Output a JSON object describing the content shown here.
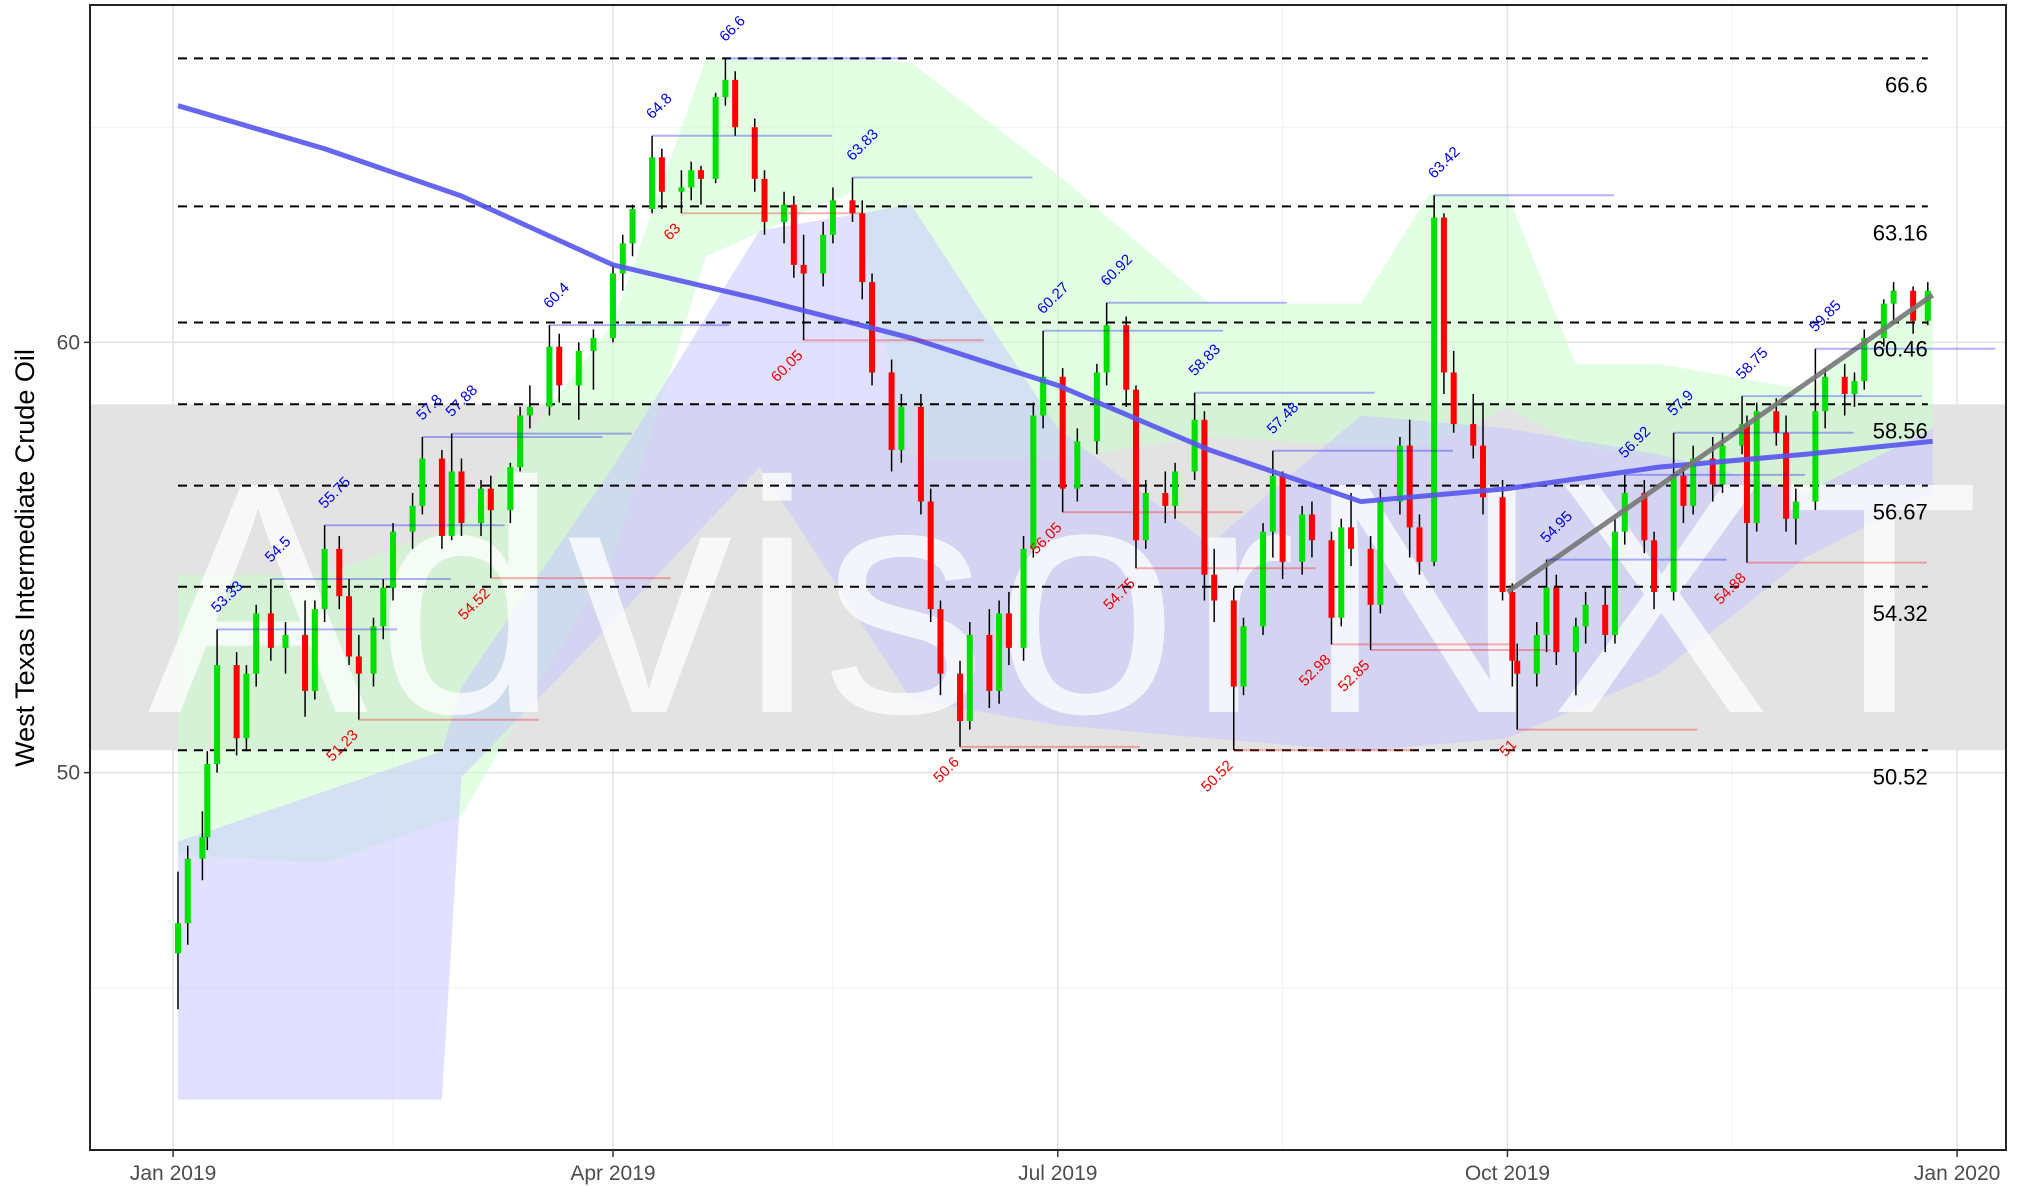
{
  "chart_data": {
    "type": "candlestick",
    "y_label": "West Texas Intermediate Crude Oil",
    "watermark": "AdvisorNXT",
    "xlim": [
      "2018-12-15",
      "2020-01-11"
    ],
    "xticks": [
      {
        "value": "2019-01-01",
        "label": "Jan 2019"
      },
      {
        "value": "2019-04-01",
        "label": "Apr 2019"
      },
      {
        "value": "2019-07-01",
        "label": "Jul 2019"
      },
      {
        "value": "2019-10-01",
        "label": "Oct 2019"
      },
      {
        "value": "2020-01-01",
        "label": "Jan 2020"
      }
    ],
    "xminor": [
      "2019-02-15",
      "2019-05-16",
      "2019-08-16",
      "2019-11-16"
    ],
    "ylim": [
      41.23,
      67.84
    ],
    "yticks": [
      50,
      60
    ],
    "yminor": [
      45,
      55,
      65
    ],
    "grid": true,
    "up_color": "#00e000",
    "down_color": "#ff0000",
    "candles": [
      [
        "2019-01-02",
        45.8,
        47.7,
        44.5,
        46.5
      ],
      [
        "2019-01-04",
        46.5,
        48.3,
        46.0,
        48.0
      ],
      [
        "2019-01-07",
        48.0,
        49.1,
        47.5,
        48.5
      ],
      [
        "2019-01-08",
        48.5,
        50.5,
        48.2,
        50.2
      ],
      [
        "2019-01-10",
        50.2,
        53.33,
        50.0,
        52.5
      ],
      [
        "2019-01-14",
        52.5,
        52.8,
        50.4,
        50.8
      ],
      [
        "2019-01-16",
        50.8,
        52.5,
        50.5,
        52.3
      ],
      [
        "2019-01-18",
        52.3,
        53.9,
        52.0,
        53.7
      ],
      [
        "2019-01-21",
        53.7,
        54.5,
        52.6,
        52.9
      ],
      [
        "2019-01-24",
        52.9,
        53.5,
        52.3,
        53.2
      ],
      [
        "2019-01-28",
        53.2,
        54.0,
        51.3,
        51.9
      ],
      [
        "2019-01-30",
        51.9,
        54.0,
        51.7,
        53.8
      ],
      [
        "2019-02-01",
        53.8,
        55.75,
        53.5,
        55.2
      ],
      [
        "2019-02-04",
        55.2,
        55.5,
        53.8,
        54.1
      ],
      [
        "2019-02-06",
        54.1,
        54.5,
        52.5,
        52.7
      ],
      [
        "2019-02-08",
        52.7,
        53.2,
        51.23,
        52.3
      ],
      [
        "2019-02-11",
        52.3,
        53.6,
        52.0,
        53.4
      ],
      [
        "2019-02-13",
        53.4,
        54.5,
        53.1,
        54.3
      ],
      [
        "2019-02-15",
        54.3,
        55.8,
        54.0,
        55.6
      ],
      [
        "2019-02-19",
        55.6,
        56.5,
        55.2,
        56.2
      ],
      [
        "2019-02-21",
        56.2,
        57.8,
        56.0,
        57.3
      ],
      [
        "2019-02-25",
        57.3,
        57.5,
        55.2,
        55.5
      ],
      [
        "2019-02-27",
        55.5,
        57.88,
        55.4,
        57.0
      ],
      [
        "2019-03-01",
        57.0,
        57.3,
        55.5,
        55.8
      ],
      [
        "2019-03-05",
        55.8,
        56.8,
        55.5,
        56.6
      ],
      [
        "2019-03-07",
        56.6,
        56.9,
        54.52,
        56.1
      ],
      [
        "2019-03-11",
        56.1,
        57.2,
        55.8,
        57.1
      ],
      [
        "2019-03-13",
        57.1,
        58.5,
        57.0,
        58.3
      ],
      [
        "2019-03-15",
        58.3,
        59.0,
        58.0,
        58.5
      ],
      [
        "2019-03-19",
        58.5,
        60.4,
        58.3,
        59.9
      ],
      [
        "2019-03-21",
        59.9,
        60.2,
        58.6,
        59.0
      ],
      [
        "2019-03-25",
        59.0,
        60.0,
        58.2,
        59.8
      ],
      [
        "2019-03-28",
        59.8,
        60.3,
        58.9,
        60.1
      ],
      [
        "2019-04-01",
        60.1,
        61.8,
        60.0,
        61.6
      ],
      [
        "2019-04-03",
        61.6,
        62.5,
        61.2,
        62.3
      ],
      [
        "2019-04-05",
        62.3,
        63.2,
        62.0,
        63.1
      ],
      [
        "2019-04-09",
        63.1,
        64.8,
        63.0,
        64.3
      ],
      [
        "2019-04-11",
        64.3,
        64.5,
        63.1,
        63.5
      ],
      [
        "2019-04-15",
        63.5,
        64.0,
        63,
        63.6
      ],
      [
        "2019-04-17",
        63.6,
        64.2,
        63.3,
        64.0
      ],
      [
        "2019-04-19",
        64.0,
        64.1,
        63.2,
        63.8
      ],
      [
        "2019-04-22",
        63.8,
        65.8,
        63.7,
        65.7
      ],
      [
        "2019-04-24",
        65.7,
        66.6,
        65.5,
        66.1
      ],
      [
        "2019-04-26",
        66.1,
        66.3,
        64.8,
        65.0
      ],
      [
        "2019-04-30",
        65.0,
        65.2,
        63.5,
        63.8
      ],
      [
        "2019-05-02",
        63.8,
        64.0,
        62.5,
        62.8
      ],
      [
        "2019-05-06",
        62.8,
        63.5,
        62.3,
        63.2
      ],
      [
        "2019-05-08",
        63.2,
        63.4,
        61.5,
        61.8
      ],
      [
        "2019-05-10",
        61.8,
        62.5,
        60.05,
        61.6
      ],
      [
        "2019-05-14",
        61.6,
        62.8,
        61.3,
        62.5
      ],
      [
        "2019-05-16",
        62.5,
        63.6,
        62.3,
        63.3
      ],
      [
        "2019-05-20",
        63.3,
        63.83,
        62.8,
        63.0
      ],
      [
        "2019-05-22",
        63.0,
        63.3,
        61.0,
        61.4
      ],
      [
        "2019-05-24",
        61.4,
        61.6,
        59.0,
        59.3
      ],
      [
        "2019-05-28",
        59.3,
        59.6,
        57.0,
        57.5
      ],
      [
        "2019-05-30",
        57.5,
        58.8,
        57.2,
        58.5
      ],
      [
        "2019-06-03",
        58.5,
        58.8,
        56.0,
        56.3
      ],
      [
        "2019-06-05",
        56.3,
        56.6,
        53.5,
        53.8
      ],
      [
        "2019-06-07",
        53.8,
        54.0,
        51.8,
        52.3
      ],
      [
        "2019-06-11",
        52.3,
        52.6,
        50.6,
        51.2
      ],
      [
        "2019-06-13",
        51.2,
        53.5,
        51.0,
        53.2
      ],
      [
        "2019-06-17",
        53.2,
        53.8,
        51.5,
        51.9
      ],
      [
        "2019-06-19",
        51.9,
        54.0,
        51.6,
        53.7
      ],
      [
        "2019-06-21",
        53.7,
        54.2,
        52.5,
        52.9
      ],
      [
        "2019-06-24",
        52.9,
        55.5,
        52.6,
        55.2
      ],
      [
        "2019-06-26",
        55.2,
        58.6,
        55.0,
        58.3
      ],
      [
        "2019-06-28",
        58.3,
        60.27,
        58.0,
        59.2
      ],
      [
        "2019-07-02",
        59.2,
        59.4,
        56.05,
        56.6
      ],
      [
        "2019-07-05",
        56.6,
        58.0,
        56.3,
        57.7
      ],
      [
        "2019-07-09",
        57.7,
        59.5,
        57.4,
        59.3
      ],
      [
        "2019-07-11",
        59.3,
        60.92,
        59.0,
        60.4
      ],
      [
        "2019-07-15",
        60.4,
        60.6,
        58.5,
        58.9
      ],
      [
        "2019-07-17",
        58.9,
        59.0,
        54.75,
        55.4
      ],
      [
        "2019-07-19",
        55.4,
        56.8,
        55.2,
        56.5
      ],
      [
        "2019-07-23",
        56.5,
        57.0,
        55.8,
        56.2
      ],
      [
        "2019-07-25",
        56.2,
        57.2,
        55.9,
        57.0
      ],
      [
        "2019-07-29",
        57.0,
        58.83,
        56.8,
        58.2
      ],
      [
        "2019-07-31",
        58.2,
        58.4,
        54.0,
        54.6
      ],
      [
        "2019-08-02",
        54.6,
        55.2,
        53.5,
        54.0
      ],
      [
        "2019-08-06",
        54.0,
        54.3,
        50.52,
        52.0
      ],
      [
        "2019-08-08",
        52.0,
        53.6,
        51.8,
        53.4
      ],
      [
        "2019-08-12",
        53.4,
        55.8,
        53.2,
        55.6
      ],
      [
        "2019-08-14",
        55.6,
        57.48,
        55.0,
        56.9
      ],
      [
        "2019-08-16",
        56.9,
        57.0,
        54.5,
        54.9
      ],
      [
        "2019-08-20",
        54.9,
        56.2,
        54.6,
        56.0
      ],
      [
        "2019-08-22",
        56.0,
        56.3,
        55.0,
        55.4
      ],
      [
        "2019-08-26",
        55.4,
        55.6,
        52.98,
        53.6
      ],
      [
        "2019-08-28",
        53.6,
        55.9,
        53.4,
        55.7
      ],
      [
        "2019-08-30",
        55.7,
        56.5,
        54.8,
        55.2
      ],
      [
        "2019-09-03",
        55.2,
        55.5,
        52.85,
        53.9
      ],
      [
        "2019-09-05",
        53.9,
        56.6,
        53.7,
        56.3
      ],
      [
        "2019-09-09",
        56.3,
        57.8,
        56.0,
        57.6
      ],
      [
        "2019-09-11",
        57.6,
        58.2,
        55.0,
        55.7
      ],
      [
        "2019-09-13",
        55.7,
        56.0,
        54.6,
        54.9
      ],
      [
        "2019-09-16",
        54.9,
        63.42,
        54.8,
        62.9
      ],
      [
        "2019-09-18",
        62.9,
        63.0,
        58.8,
        59.3
      ],
      [
        "2019-09-20",
        59.3,
        59.8,
        57.9,
        58.1
      ],
      [
        "2019-09-24",
        58.1,
        58.8,
        57.3,
        57.6
      ],
      [
        "2019-09-26",
        57.6,
        58.6,
        56.0,
        56.4
      ],
      [
        "2019-09-30",
        56.4,
        56.8,
        54.0,
        54.2
      ],
      [
        "2019-10-02",
        54.2,
        54.4,
        52.0,
        52.6
      ],
      [
        "2019-10-03",
        52.6,
        53.0,
        51,
        52.3
      ],
      [
        "2019-10-07",
        52.3,
        53.5,
        52.0,
        53.2
      ],
      [
        "2019-10-09",
        53.2,
        54.95,
        52.8,
        54.3
      ],
      [
        "2019-10-11",
        54.3,
        54.6,
        52.5,
        52.8
      ],
      [
        "2019-10-15",
        52.8,
        53.6,
        51.8,
        53.4
      ],
      [
        "2019-10-17",
        53.4,
        54.2,
        53.0,
        53.9
      ],
      [
        "2019-10-21",
        53.9,
        54.3,
        52.8,
        53.2
      ],
      [
        "2019-10-23",
        53.2,
        55.9,
        53.0,
        55.6
      ],
      [
        "2019-10-25",
        55.6,
        56.92,
        55.3,
        56.5
      ],
      [
        "2019-10-29",
        56.5,
        56.8,
        55.1,
        55.4
      ],
      [
        "2019-10-31",
        55.4,
        55.6,
        53.8,
        54.2
      ],
      [
        "2019-11-04",
        54.2,
        57.9,
        54.0,
        56.9
      ],
      [
        "2019-11-06",
        56.9,
        57.1,
        55.8,
        56.2
      ],
      [
        "2019-11-08",
        56.2,
        57.6,
        56.0,
        57.3
      ],
      [
        "2019-11-12",
        57.3,
        57.8,
        56.3,
        56.7
      ],
      [
        "2019-11-14",
        56.7,
        57.9,
        56.5,
        57.6
      ],
      [
        "2019-11-18",
        57.6,
        58.75,
        57.4,
        58.1
      ],
      [
        "2019-11-19",
        58.1,
        58.3,
        54.88,
        55.8
      ],
      [
        "2019-11-21",
        55.8,
        58.6,
        55.6,
        58.4
      ],
      [
        "2019-11-25",
        58.4,
        58.7,
        57.6,
        57.9
      ],
      [
        "2019-11-27",
        57.9,
        58.3,
        55.6,
        55.9
      ],
      [
        "2019-11-29",
        55.9,
        56.6,
        55.3,
        56.3
      ],
      [
        "2019-12-03",
        56.3,
        59.85,
        56.1,
        58.4
      ],
      [
        "2019-12-05",
        58.4,
        59.4,
        58.0,
        59.2
      ],
      [
        "2019-12-09",
        59.2,
        59.5,
        58.3,
        58.8
      ],
      [
        "2019-12-11",
        58.8,
        59.3,
        58.5,
        59.1
      ],
      [
        "2019-12-13",
        59.1,
        60.3,
        58.9,
        60.1
      ],
      [
        "2019-12-17",
        60.1,
        61.0,
        59.9,
        60.9
      ],
      [
        "2019-12-19",
        60.9,
        61.4,
        60.5,
        61.2
      ],
      [
        "2019-12-23",
        61.2,
        61.3,
        60.2,
        60.5
      ],
      [
        "2019-12-26",
        60.5,
        61.4,
        60.4,
        61.2
      ]
    ],
    "band": {
      "color": "#e3e3e3",
      "values": [
        50.52,
        58.56
      ]
    },
    "levels": [
      66.6,
      63.16,
      60.46,
      58.56,
      56.67,
      54.32,
      50.52
    ],
    "clouds": [
      {
        "color": "#ccffcc",
        "x": [
          "2019-01-02",
          "2019-02-01",
          "2019-03-01",
          "2019-04-01",
          "2019-04-20",
          "2019-05-20",
          "2019-06-01",
          "2019-07-01",
          "2019-08-01",
          "2019-09-01",
          "2019-09-15",
          "2019-10-01",
          "2019-10-15",
          "2019-11-01",
          "2019-12-01",
          "2019-12-27"
        ],
        "upper": [
          54.6,
          54.6,
          55.8,
          60.45,
          66.6,
          66.6,
          66.5,
          63.9,
          60.9,
          60.9,
          63.45,
          63.45,
          59.5,
          59.5,
          58.9,
          61.2
        ],
        "lower": [
          48.1,
          47.9,
          49.0,
          55.0,
          62.0,
          63.5,
          57.3,
          57.3,
          57.8,
          57.6,
          57.6,
          58.5,
          57.6,
          57.3,
          56.5,
          58.0
        ]
      },
      {
        "color": "#c8c8ff",
        "x": [
          "2019-01-02",
          "2019-02-25",
          "2019-03-01",
          "2019-04-01",
          "2019-05-01",
          "2019-06-01",
          "2019-07-01",
          "2019-08-01",
          "2019-09-01",
          "2019-10-01",
          "2019-11-01",
          "2019-12-01",
          "2019-12-27"
        ],
        "upper": [
          48.4,
          50.5,
          52.0,
          57.1,
          62.6,
          63.2,
          58.0,
          55.3,
          58.3,
          58.0,
          57.4,
          56.5,
          58.0
        ],
        "lower": [
          42.4,
          42.4,
          49.9,
          53.5,
          57.1,
          51.7,
          51.1,
          50.8,
          50.5,
          50.8,
          52.3,
          55.0,
          56.5
        ]
      }
    ],
    "ma": {
      "color": "#5555ee",
      "x": [
        "2019-01-02",
        "2019-02-01",
        "2019-03-01",
        "2019-04-01",
        "2019-05-01",
        "2019-06-01",
        "2019-07-01",
        "2019-08-01",
        "2019-09-01",
        "2019-10-01",
        "2019-11-01",
        "2019-12-01",
        "2019-12-27"
      ],
      "values": [
        65.5,
        64.5,
        63.4,
        61.8,
        61.0,
        60.1,
        59.0,
        57.5,
        56.3,
        56.6,
        57.1,
        57.4,
        57.7
      ]
    },
    "trend": {
      "color": "#777777",
      "x": [
        "2019-10-01",
        "2019-12-27"
      ],
      "values": [
        54.2,
        61.1
      ]
    },
    "highs": {
      "color": "#0000ee",
      "points": [
        [
          "2019-01-10",
          53.33
        ],
        [
          "2019-01-21",
          54.5
        ],
        [
          "2019-02-01",
          55.75
        ],
        [
          "2019-02-21",
          57.8
        ],
        [
          "2019-02-27",
          57.88
        ],
        [
          "2019-03-19",
          60.4
        ],
        [
          "2019-04-09",
          64.8
        ],
        [
          "2019-04-24",
          66.6
        ],
        [
          "2019-05-20",
          63.83
        ],
        [
          "2019-06-28",
          60.27
        ],
        [
          "2019-07-11",
          60.92
        ],
        [
          "2019-07-29",
          58.83
        ],
        [
          "2019-08-14",
          57.48
        ],
        [
          "2019-09-16",
          63.42
        ],
        [
          "2019-10-09",
          54.95
        ],
        [
          "2019-10-25",
          56.92
        ],
        [
          "2019-11-04",
          57.9
        ],
        [
          "2019-11-18",
          58.75
        ],
        [
          "2019-12-03",
          59.85
        ]
      ]
    },
    "lows": {
      "color": "#ee0000",
      "points": [
        [
          "2019-02-08",
          51.23
        ],
        [
          "2019-03-07",
          54.52
        ],
        [
          "2019-04-15",
          63
        ],
        [
          "2019-05-10",
          60.05
        ],
        [
          "2019-06-11",
          50.6
        ],
        [
          "2019-07-02",
          56.05
        ],
        [
          "2019-07-17",
          54.75
        ],
        [
          "2019-08-06",
          50.52
        ],
        [
          "2019-08-26",
          52.98
        ],
        [
          "2019-09-03",
          52.85
        ],
        [
          "2019-10-03",
          51
        ],
        [
          "2019-11-19",
          54.88
        ]
      ]
    }
  }
}
